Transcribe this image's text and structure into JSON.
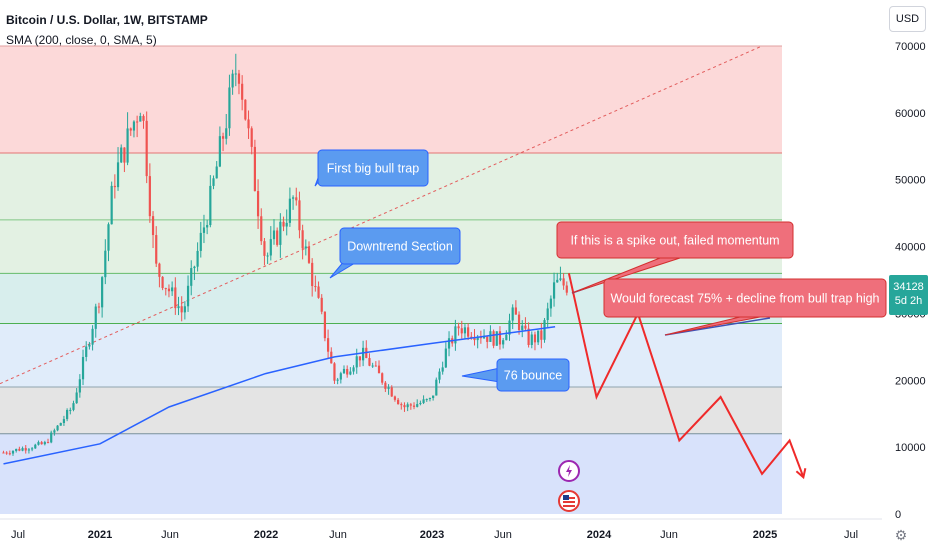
{
  "header": {
    "title": "Bitcoin / U.S. Dollar, 1W, BITSTAMP",
    "indicator": "SMA (200, close, 0, SMA, 5)"
  },
  "currency_button": "USD",
  "last_price": {
    "value": "34128",
    "countdown": "5d 2h",
    "color": "#26a69a"
  },
  "settings_icon": "gear-icon",
  "chart_data": {
    "type": "candlestick",
    "title": "Bitcoin / U.S. Dollar, 1W, BITSTAMP",
    "y_axis": {
      "ticks": [
        0,
        10000,
        20000,
        30000,
        40000,
        50000,
        60000,
        70000
      ],
      "ylim": [
        0,
        70000
      ],
      "position": "right"
    },
    "x_axis": {
      "ticks": [
        "Jul",
        "2021",
        "Jun",
        "2022",
        "Jun",
        "2023",
        "Jun",
        "2024",
        "Jun",
        "2025",
        "Jul"
      ]
    },
    "grid": false,
    "colors": {
      "up": "#26a69a",
      "down": "#ef5350",
      "sma": "#2962ff",
      "forecast": "#ef2a2a"
    },
    "price_path": [
      [
        "2020-06",
        9200
      ],
      [
        "2020-09",
        10500
      ],
      [
        "2020-11",
        16000
      ],
      [
        "2021-01",
        33000
      ],
      [
        "2021-02",
        50000
      ],
      [
        "2021-04",
        62000
      ],
      [
        "2021-05",
        37000
      ],
      [
        "2021-07",
        30000
      ],
      [
        "2021-09",
        47000
      ],
      [
        "2021-11",
        68000
      ],
      [
        "2022-01",
        38000
      ],
      [
        "2022-03",
        47000
      ],
      [
        "2022-05",
        30000
      ],
      [
        "2022-06",
        20000
      ],
      [
        "2022-08",
        24000
      ],
      [
        "2022-11",
        16000
      ],
      [
        "2023-01",
        17000
      ],
      [
        "2023-02",
        24000
      ],
      [
        "2023-03",
        28000
      ],
      [
        "2023-06",
        26000
      ],
      [
        "2023-07",
        30000
      ],
      [
        "2023-08",
        26000
      ],
      [
        "2023-09",
        26500
      ],
      [
        "2023-10",
        34500
      ],
      [
        "2023-11",
        34128
      ]
    ],
    "sma_200": [
      [
        "2020-06",
        7500
      ],
      [
        "2021-01",
        10500
      ],
      [
        "2021-06",
        16000
      ],
      [
        "2022-01",
        21000
      ],
      [
        "2022-06",
        23500
      ],
      [
        "2023-01",
        25500
      ],
      [
        "2023-10",
        28000
      ]
    ],
    "horizontal_levels": [
      70000,
      54000,
      44000,
      36000,
      28500,
      19000,
      12000
    ],
    "zones": [
      {
        "from": 54000,
        "to": 70000,
        "color": "#fcd9d9"
      },
      {
        "from": 44000,
        "to": 54000,
        "color": "#e3f1e3"
      },
      {
        "from": 36000,
        "to": 44000,
        "color": "#e3f1e3"
      },
      {
        "from": 28500,
        "to": 36000,
        "color": "#d8eeed"
      },
      {
        "from": 19000,
        "to": 28500,
        "color": "#e0ecfa"
      },
      {
        "from": 12000,
        "to": 19000,
        "color": "#e4e4e4"
      },
      {
        "from": 0,
        "to": 12000,
        "color": "#d8e2fb"
      }
    ],
    "trendline_dashed": [
      [
        "2020-06",
        19500
      ],
      [
        "2025-01",
        70000
      ]
    ],
    "forecast_path": [
      [
        "2023-11",
        36000
      ],
      [
        "2024-01",
        17500
      ],
      [
        "2024-04",
        30000
      ],
      [
        "2024-07",
        11000
      ],
      [
        "2024-10",
        17500
      ],
      [
        "2025-01",
        6000
      ],
      [
        "2025-03",
        11000
      ],
      [
        "2025-04",
        5500
      ]
    ],
    "annotations": [
      {
        "text": "First big bull trap"
      },
      {
        "text": "Downtrend Section"
      },
      {
        "text": "76 bounce"
      },
      {
        "text": "If this is a spike out, failed momentum"
      },
      {
        "text": "Would forecast 75% + decline from bull trap high"
      }
    ]
  }
}
